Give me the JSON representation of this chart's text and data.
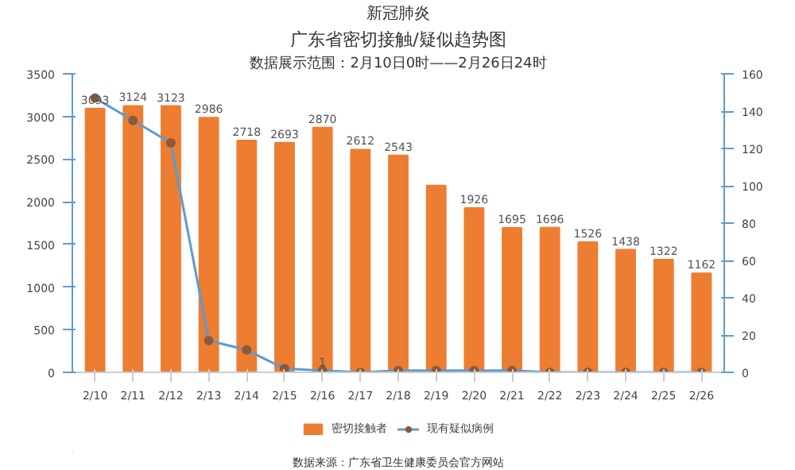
{
  "chart_data": {
    "type": "bar",
    "title": "新冠肺炎",
    "subtitle": "广东省密切接触/疑似趋势图",
    "categories": [
      "2/10",
      "2/11",
      "2/12",
      "2/13",
      "2/14",
      "2/15",
      "2/16",
      "2/17",
      "2/18",
      "2/19",
      "2/20",
      "2/21",
      "2/22",
      "2/23",
      "2/24",
      "2/25",
      "2/26"
    ],
    "series": [
      {
        "name": "密切接触者",
        "color": "#ed7d31",
        "values": [
          3093,
          3124,
          3123,
          2986,
          2718,
          2693,
          2870,
          2612,
          2543,
          2190,
          1926,
          1695,
          1696,
          1526,
          1438,
          1322,
          1162
        ],
        "value_labels": [
          "3093",
          "3124",
          "3123",
          "2986",
          "2718",
          "2693",
          "2870",
          "2612",
          "2543",
          null,
          "1926",
          "1695",
          "1696",
          "1526",
          "1438",
          "1322",
          "1162"
        ]
      },
      {
        "name": "现有疑似病例",
        "type": "line",
        "axis": "y2",
        "color": "#5b9bd5",
        "marker": "circle",
        "values": [
          147,
          135,
          123,
          17,
          12,
          2,
          1,
          0,
          1,
          1,
          1,
          1,
          0,
          0,
          0,
          0,
          0
        ],
        "value_labels": [
          null,
          null,
          null,
          null,
          null,
          null,
          "1",
          null,
          null,
          null,
          null,
          null,
          null,
          null,
          null,
          null,
          null
        ]
      }
    ],
    "ylim": [
      0,
      3500
    ],
    "yticks": [
      0,
      500,
      1000,
      1500,
      2000,
      2500,
      3000,
      3500
    ],
    "y2lim": [
      0,
      160
    ],
    "y2ticks": [
      0,
      20,
      40,
      60,
      80,
      100,
      120,
      140,
      160
    ],
    "grid": false,
    "legend": "bottom",
    "annotations": [
      "数据展示范围：2月10日0时——2月26日24时",
      "数据来源：广东省卫生健康委员会官方网站"
    ]
  }
}
